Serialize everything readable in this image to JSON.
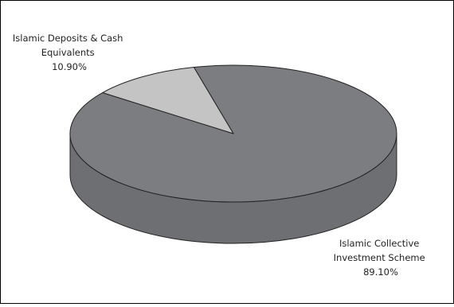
{
  "chart_data": {
    "type": "pie",
    "style": "3d",
    "title": "",
    "start_angle_deg": -104,
    "slices": [
      {
        "name": "Islamic Collective Investment Scheme",
        "label_lines": [
          "Islamic Collective",
          "Investment Scheme"
        ],
        "value": 89.1,
        "value_label": "89.10%",
        "color": "#7c7d80"
      },
      {
        "name": "Islamic Deposits & Cash Equivalents",
        "label_lines": [
          "Islamic Deposits & Cash",
          "Equivalents"
        ],
        "value": 10.9,
        "value_label": "10.90%",
        "color": "#c4c4c4"
      }
    ],
    "colors": {
      "border": "#000000",
      "edge": "#222222",
      "side_dark": "#6e6f72"
    }
  }
}
